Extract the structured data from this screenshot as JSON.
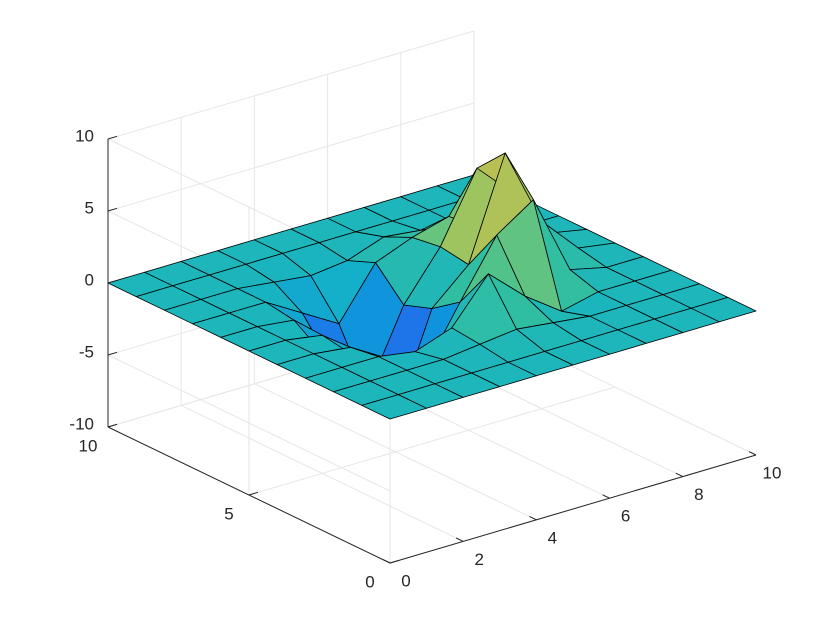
{
  "chart_data": {
    "type": "surface",
    "title": "",
    "xlabel": "",
    "ylabel": "",
    "zlabel": "",
    "xlim": [
      0,
      10
    ],
    "ylim": [
      0,
      10
    ],
    "zlim": [
      -10,
      10
    ],
    "x_ticks": [
      "0",
      "2",
      "4",
      "6",
      "8",
      "10"
    ],
    "y_ticks": [
      "0",
      "5",
      "10"
    ],
    "z_ticks": [
      "-10",
      "-5",
      "0",
      "5",
      "10"
    ],
    "grid": true,
    "colormap": [
      "#3e26a8",
      "#2c5cf2",
      "#0f91de",
      "#15b2c6",
      "#33bf9f",
      "#8ac767",
      "#cebd4a",
      "#f9d431"
    ],
    "grid_x": [
      0,
      1,
      2,
      3,
      4,
      5,
      6,
      7,
      8,
      9,
      10
    ],
    "grid_y": [
      0,
      1,
      2,
      3,
      4,
      5,
      6,
      7,
      8,
      9,
      10
    ],
    "z": [
      [
        0,
        0,
        0,
        0,
        0,
        0,
        0,
        0,
        0,
        0,
        0
      ],
      [
        0,
        0,
        0,
        0,
        0,
        0,
        0,
        0,
        0,
        0,
        0
      ],
      [
        0,
        0,
        0,
        0,
        0.3,
        0.6,
        0.3,
        0,
        0,
        0,
        0
      ],
      [
        0,
        0,
        0,
        -0.4,
        0.5,
        3.5,
        1.2,
        -0.6,
        0,
        0,
        0
      ],
      [
        0,
        0,
        -0.3,
        -1.8,
        -3.5,
        0.6,
        4.5,
        6.2,
        0.6,
        0,
        0
      ],
      [
        0,
        0,
        -0.4,
        -2.8,
        -7.5,
        -0.8,
        1.5,
        8.5,
        3.0,
        0.4,
        0
      ],
      [
        0,
        0,
        -0.3,
        -4.0,
        -6.8,
        -1.5,
        1.8,
        6.5,
        4.0,
        0.5,
        0
      ],
      [
        0,
        0,
        0,
        -1.5,
        -3.0,
        0.5,
        1.5,
        2.2,
        0.6,
        0,
        0
      ],
      [
        0,
        0,
        0,
        -0.3,
        -0.6,
        -0.3,
        0.6,
        0.3,
        0,
        0,
        0
      ],
      [
        0,
        0,
        0,
        0,
        0,
        0,
        0,
        0,
        0,
        0,
        0
      ],
      [
        0,
        0,
        0,
        0,
        0,
        0,
        0,
        0,
        0,
        0,
        0
      ]
    ]
  }
}
